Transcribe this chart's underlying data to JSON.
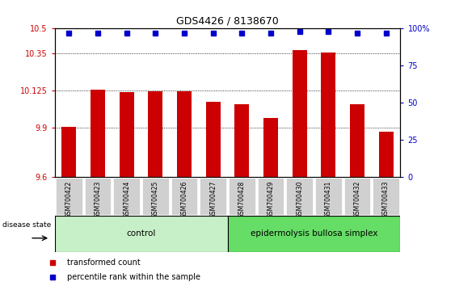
{
  "title": "GDS4426 / 8138670",
  "samples": [
    "GSM700422",
    "GSM700423",
    "GSM700424",
    "GSM700425",
    "GSM700426",
    "GSM700427",
    "GSM700428",
    "GSM700429",
    "GSM700430",
    "GSM700431",
    "GSM700432",
    "GSM700433"
  ],
  "bar_values": [
    9.905,
    10.13,
    10.115,
    10.12,
    10.12,
    10.055,
    10.04,
    9.96,
    10.37,
    10.355,
    10.04,
    9.875
  ],
  "dot_pct": [
    97,
    97,
    97,
    97,
    97,
    97,
    97,
    97,
    98,
    98,
    97,
    97
  ],
  "bar_color": "#cc0000",
  "dot_color": "#0000cc",
  "ylim_left": [
    9.6,
    10.5
  ],
  "yticks_left": [
    9.6,
    9.9,
    10.125,
    10.35,
    10.5
  ],
  "ytick_labels_left": [
    "9.6",
    "9.9",
    "10.125",
    "10.35",
    "10.5"
  ],
  "ylim_right": [
    0,
    100
  ],
  "yticks_right": [
    0,
    25,
    50,
    75,
    100
  ],
  "ytick_labels_right": [
    "0",
    "25",
    "50",
    "75",
    "100%"
  ],
  "gridlines": [
    9.9,
    10.125,
    10.35
  ],
  "control_samples": 6,
  "control_label": "control",
  "disease_label": "epidermolysis bullosa simplex",
  "disease_state_label": "disease state",
  "legend_bar_label": "transformed count",
  "legend_dot_label": "percentile rank within the sample",
  "control_color": "#c8f0c8",
  "disease_color": "#66dd66",
  "xtick_bg_color": "#d0d0d0",
  "bar_bottom": 9.6
}
